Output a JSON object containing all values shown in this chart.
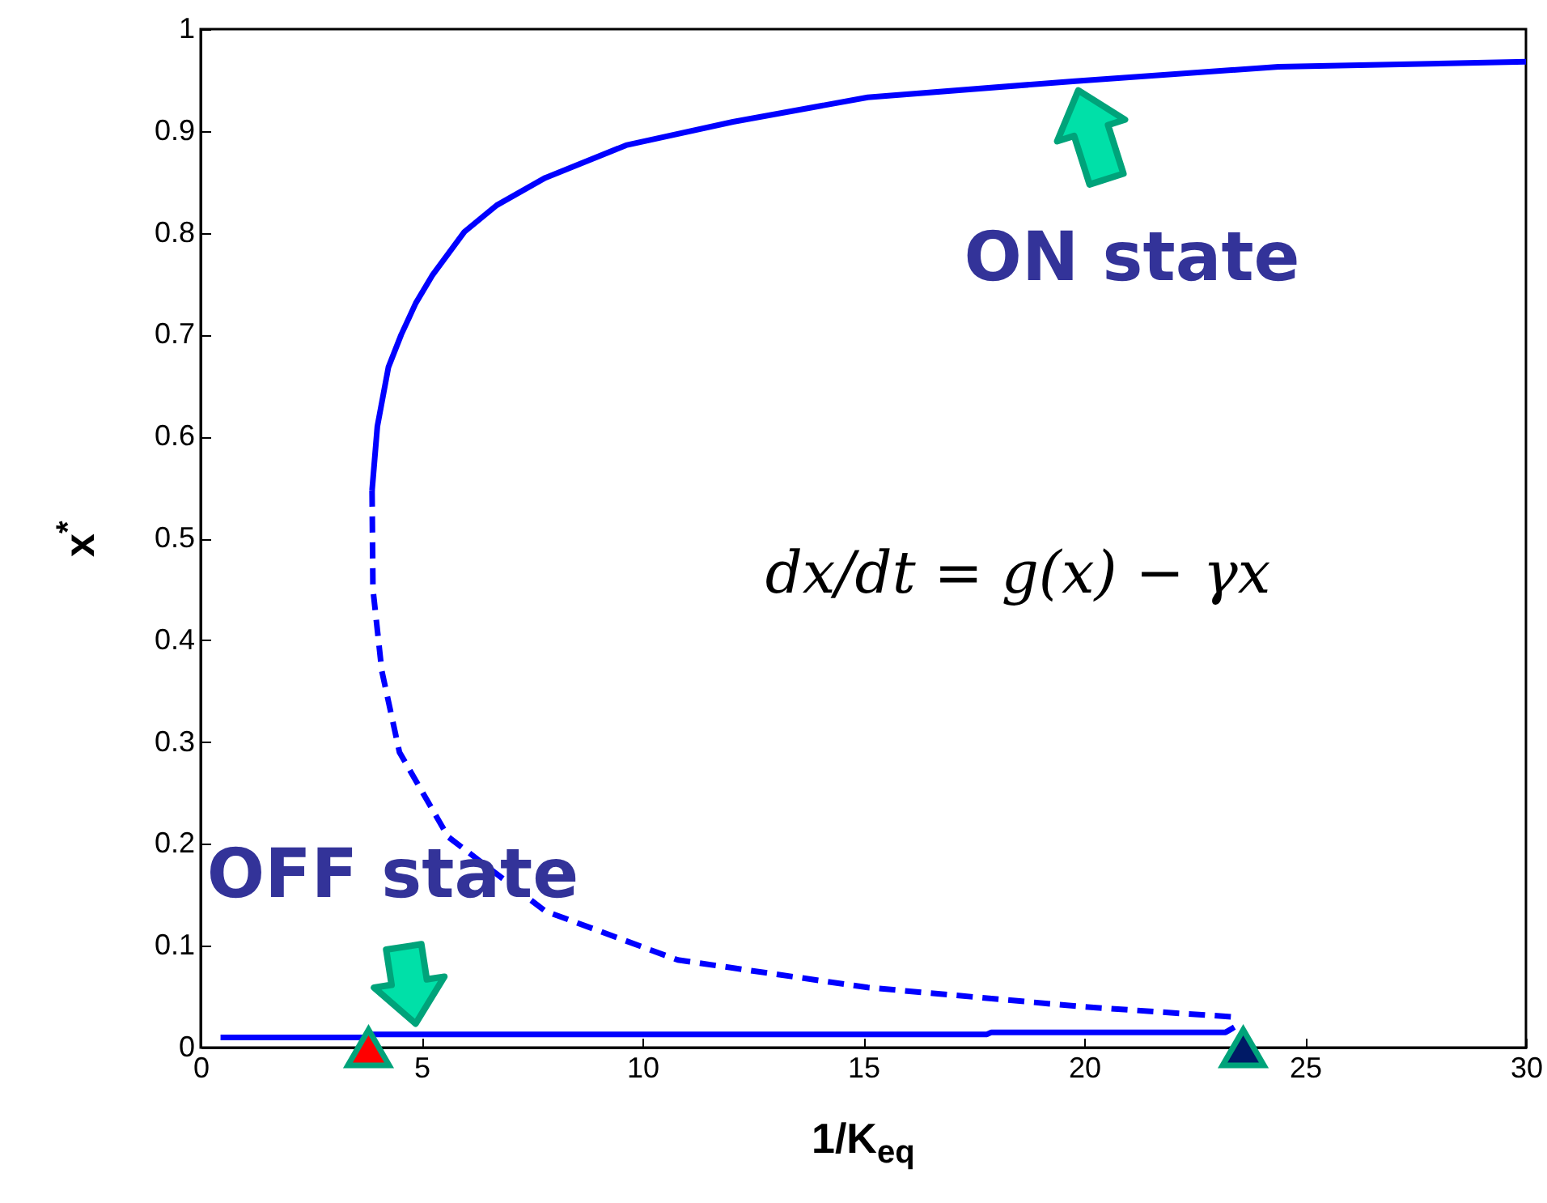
{
  "chart_data": {
    "type": "line",
    "xlabel": "1/K$_{eq}$",
    "ylabel": "x$^{*}$",
    "xlim": [
      0,
      30
    ],
    "ylim": [
      0,
      1
    ],
    "xticks": [
      0,
      5,
      10,
      15,
      20,
      25,
      30
    ],
    "yticks": [
      0,
      0.1,
      0.2,
      0.3,
      0.4,
      0.5,
      0.6,
      0.7,
      0.8,
      0.9,
      1
    ],
    "grid": false,
    "series": [
      {
        "line_style": "solid",
        "color": "#0000ff",
        "x": [
          3.88,
          4.0,
          4.25,
          4.54,
          4.87,
          5.24,
          5.97,
          6.7,
          7.8,
          9.63,
          12.05,
          15.1,
          19.8,
          24.4,
          30
        ],
        "values": [
          0.547,
          0.61,
          0.668,
          0.7,
          0.731,
          0.758,
          0.801,
          0.827,
          0.854,
          0.886,
          0.909,
          0.933,
          0.949,
          0.963,
          0.968
        ]
      },
      {
        "line_style": "dashed",
        "color": "#0000ff",
        "x": [
          3.88,
          3.9,
          4.1,
          4.5,
          5.6,
          7.8,
          10.8,
          15.1,
          20,
          23.4
        ],
        "values": [
          0.547,
          0.45,
          0.37,
          0.29,
          0.207,
          0.134,
          0.086,
          0.059,
          0.04,
          0.03
        ]
      },
      {
        "line_style": "solid",
        "color": "#0000ff",
        "x": [
          0.45,
          3.8,
          3.9,
          17.8,
          17.9,
          23.2,
          23.4
        ],
        "values": [
          0.01,
          0.01,
          0.013,
          0.013,
          0.015,
          0.015,
          0.02
        ]
      },
      {
        "type": "scatter",
        "marker": "triangle",
        "colors": [
          "#ff0000",
          "#001a66"
        ],
        "x": [
          3.8,
          23.6
        ],
        "values": [
          0,
          0
        ]
      }
    ],
    "annotations": [
      {
        "text": "ON state",
        "x": 19.8,
        "y": 0.949
      },
      {
        "text": "OFF state",
        "x": 4.9,
        "y": 0.014
      },
      "dx/dt = g(x) − γx"
    ]
  }
}
